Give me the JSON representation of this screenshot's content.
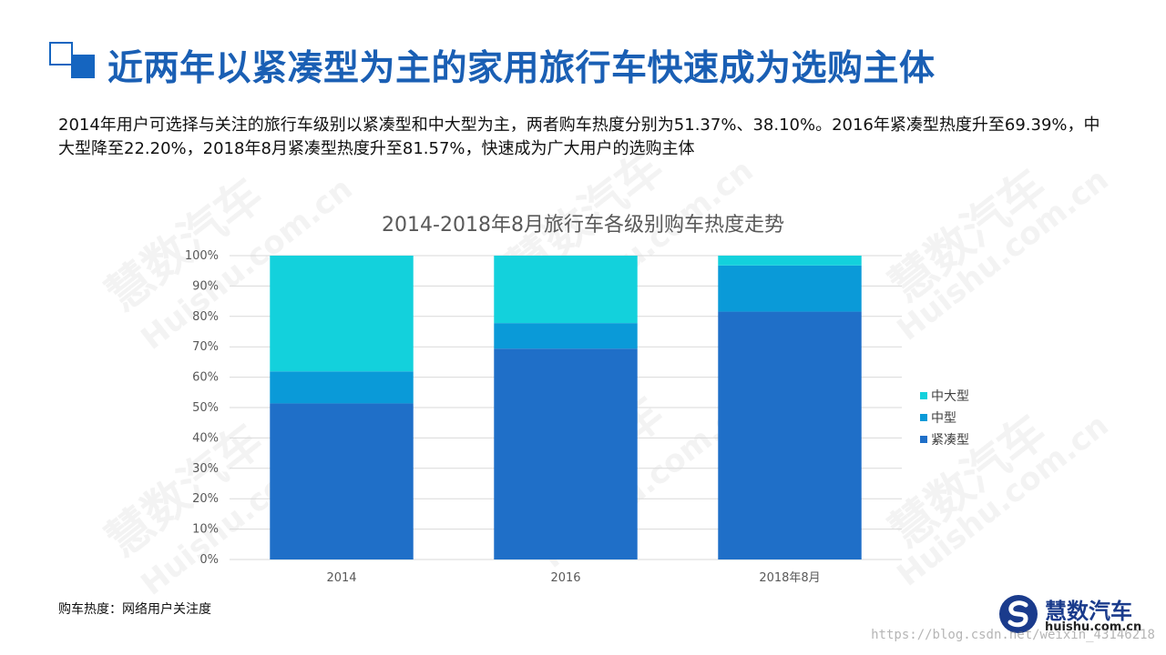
{
  "page": {
    "title": "近两年以紧凑型为主的家用旅行车快速成为选购主体",
    "description": "2014年用户可选择与关注的旅行车级别以紧凑型和中大型为主，两者购车热度分别为51.37%、38.10%。2016年紧凑型热度升至69.39%，中大型降至22.20%，2018年8月紧凑型热度升至81.57%，快速成为广大用户的选购主体",
    "source_note": "购车热度：网络用户关注度",
    "credit_text": "https://blog.csdn.net/weixin_43146218"
  },
  "branding": {
    "logo_name": "慧数汽车",
    "logo_url": "huishu.com.cn",
    "watermark_name": "慧数汽车",
    "watermark_url": "Huishu.com.cn"
  },
  "colors": {
    "accent": "#1a5fb4",
    "compact": "#1f6fc8",
    "mid": "#0a9ad8",
    "midlarge": "#13d1dc"
  },
  "chart_data": {
    "type": "bar",
    "stacked": true,
    "title": "2014-2018年8月旅行车各级别购车热度走势",
    "categories": [
      "2014",
      "2016",
      "2018年8月"
    ],
    "series": [
      {
        "name": "紧凑型",
        "values": [
          51.37,
          69.39,
          81.57
        ]
      },
      {
        "name": "中型",
        "values": [
          10.53,
          8.41,
          15.2
        ]
      },
      {
        "name": "中大型",
        "values": [
          38.1,
          22.2,
          3.23
        ]
      }
    ],
    "legend_order": [
      "中大型",
      "中型",
      "紧凑型"
    ],
    "y_ticks": [
      "0%",
      "10%",
      "20%",
      "30%",
      "40%",
      "50%",
      "60%",
      "70%",
      "80%",
      "90%",
      "100%"
    ],
    "ylim": [
      0,
      100
    ],
    "grid": true,
    "legend_position": "right"
  }
}
